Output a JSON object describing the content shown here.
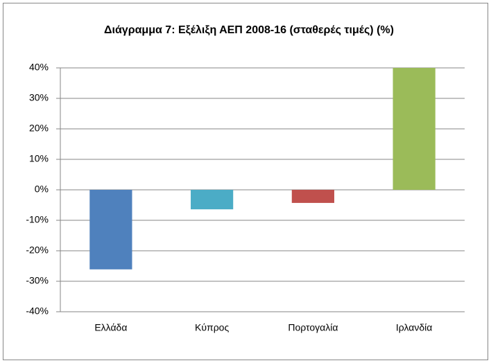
{
  "chart_data": {
    "type": "bar",
    "title": "Διάγραμμα 7: Εξέλιξη ΑΕΠ 2008-16 (σταθερές τιμές) (%)",
    "categories": [
      "Ελλάδα",
      "Κύπρος",
      "Πορτογαλία",
      "Ιρλανδία"
    ],
    "values": [
      -26.1,
      -6.4,
      -4.3,
      40
    ],
    "colors": [
      "#4f81bd",
      "#4bacc6",
      "#c0504d",
      "#9bbb59"
    ],
    "ylim": [
      -40,
      40
    ],
    "yticks": [
      {
        "value": -40,
        "label": "-40%"
      },
      {
        "value": -30,
        "label": "-30%"
      },
      {
        "value": -20,
        "label": "-20%"
      },
      {
        "value": -10,
        "label": "-10%"
      },
      {
        "value": 0,
        "label": "0%"
      },
      {
        "value": 10,
        "label": "10%"
      },
      {
        "value": 20,
        "label": "20%"
      },
      {
        "value": 30,
        "label": "30%"
      },
      {
        "value": 40,
        "label": "40%"
      }
    ],
    "grid": true
  }
}
